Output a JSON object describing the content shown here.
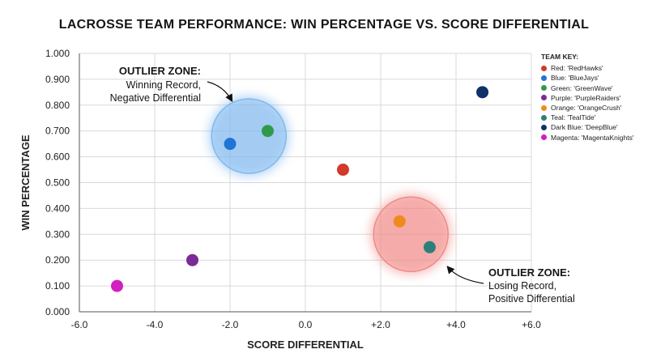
{
  "chart_data": {
    "type": "scatter",
    "title": "LACROSSE TEAM PERFORMANCE: WIN PERCENTAGE VS. SCORE DIFFERENTIAL",
    "xlabel": "SCORE DIFFERENTIAL",
    "ylabel": "WIN PERCENTAGE",
    "xlim": [
      -6,
      6
    ],
    "ylim": [
      0,
      1
    ],
    "x_ticks": [
      "-6.0",
      "-4.0",
      "-2.0",
      "0.0",
      "+2.0",
      "+4.0",
      "+6.0"
    ],
    "y_ticks": [
      "0.000",
      "0.100",
      "0.200",
      "0.300",
      "0.400",
      "0.500",
      "0.600",
      "0.700",
      "0.800",
      "0.900",
      "1.000"
    ],
    "grid": true,
    "legend_position": "top-right",
    "legend_title": "TEAM KEY:",
    "series": [
      {
        "name": "Red: 'RedHawks'",
        "color": "#d23a2a",
        "x": 1.0,
        "y": 0.55
      },
      {
        "name": "Blue: 'BlueJays'",
        "color": "#1f74d4",
        "x": -2.0,
        "y": 0.65
      },
      {
        "name": "Green: 'GreenWave'",
        "color": "#2f9a4a",
        "x": -1.0,
        "y": 0.7
      },
      {
        "name": "Purple: 'PurpleRaiders'",
        "color": "#7b2a96",
        "x": -3.0,
        "y": 0.2
      },
      {
        "name": "Orange: 'OrangeCrush'",
        "color": "#f08a1c",
        "x": 2.5,
        "y": 0.35
      },
      {
        "name": "Teal: 'TealTide'",
        "color": "#2e7f7a",
        "x": 3.3,
        "y": 0.25
      },
      {
        "name": "Dark Blue: 'DeepBlue'",
        "color": "#10306a",
        "x": 4.7,
        "y": 0.85
      },
      {
        "name": "Magenta: 'MagentaKnights'",
        "color": "#d21fbf",
        "x": -5.0,
        "y": 0.1
      }
    ],
    "annotations": [
      {
        "title": "OUTLIER ZONE:",
        "lines": [
          "Winning Record,",
          "Negative Differential"
        ],
        "zone_center": [
          -1.5,
          0.68
        ],
        "zone_color": "#7fb8ef"
      },
      {
        "title": "OUTLIER ZONE:",
        "lines": [
          "Losing Record,",
          "Positive Differential"
        ],
        "zone_center": [
          2.8,
          0.3
        ],
        "zone_color": "#f08a86"
      }
    ]
  }
}
